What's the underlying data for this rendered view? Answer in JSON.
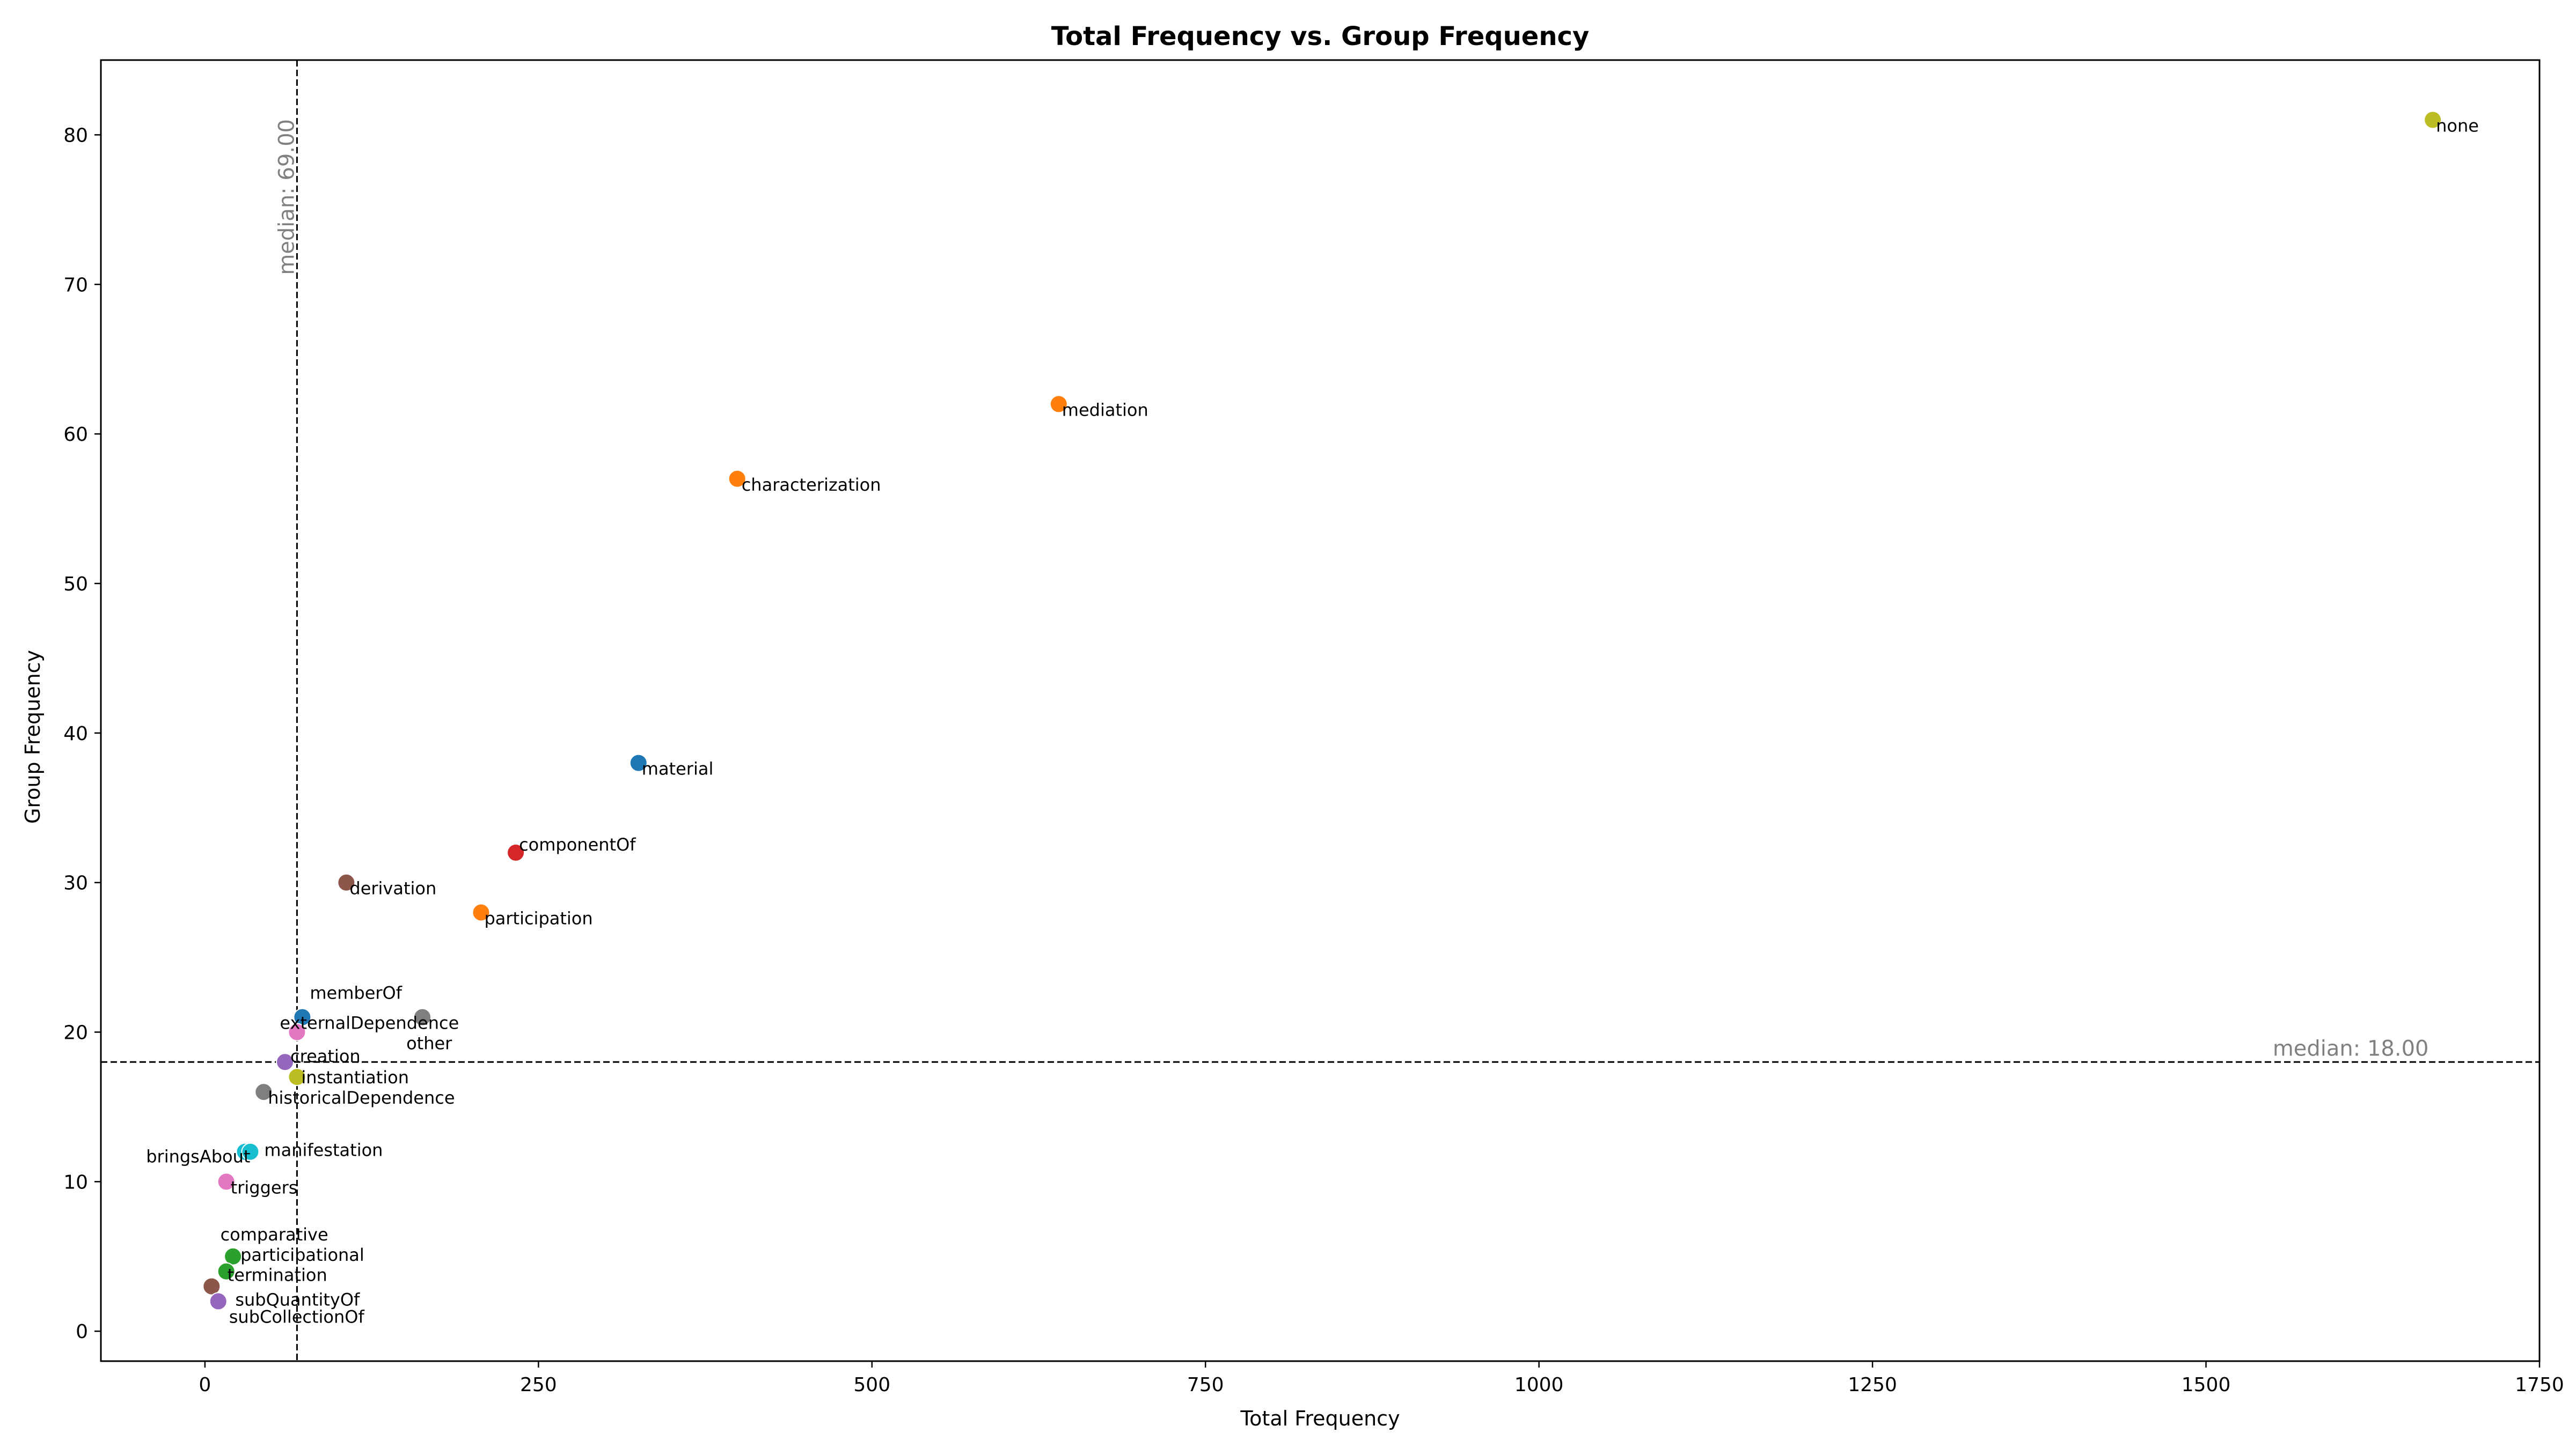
{
  "chart_data": {
    "type": "scatter",
    "title": "Total Frequency vs. Group Frequency",
    "xlabel": "Total Frequency",
    "ylabel": "Group Frequency",
    "xlim": [
      -78,
      1750
    ],
    "ylim": [
      -2,
      85
    ],
    "xticks": [
      0,
      250,
      500,
      750,
      1000,
      1250,
      1500,
      1750
    ],
    "yticks": [
      0,
      10,
      20,
      30,
      40,
      50,
      60,
      70,
      80
    ],
    "grid": false,
    "points": [
      {
        "label": "none",
        "x": 1670,
        "y": 81,
        "color": "#bcbd22"
      },
      {
        "label": "mediation",
        "x": 640,
        "y": 62,
        "color": "#ff7f0e"
      },
      {
        "label": "characterization",
        "x": 399,
        "y": 57,
        "color": "#ff7f0e"
      },
      {
        "label": "material",
        "x": 325,
        "y": 38,
        "color": "#1f77b4"
      },
      {
        "label": "componentOf",
        "x": 233,
        "y": 32,
        "color": "#d62728"
      },
      {
        "label": "derivation",
        "x": 106,
        "y": 30,
        "color": "#8c564b"
      },
      {
        "label": "participation",
        "x": 207,
        "y": 28,
        "color": "#ff7f0e"
      },
      {
        "label": "memberOf",
        "x": 73,
        "y": 21,
        "color": "#1f77b4"
      },
      {
        "label": "other",
        "x": 163,
        "y": 21,
        "color": "#7f7f7f"
      },
      {
        "label": "externalDependence",
        "x": 69,
        "y": 20,
        "color": "#e377c2"
      },
      {
        "label": "creation",
        "x": 60,
        "y": 18,
        "color": "#9467bd"
      },
      {
        "label": "instantiation",
        "x": 69,
        "y": 17,
        "color": "#bcbd22"
      },
      {
        "label": "historicalDependence",
        "x": 44,
        "y": 16,
        "color": "#7f7f7f"
      },
      {
        "label": "bringsAbout",
        "x": 30,
        "y": 12,
        "color": "#17becf"
      },
      {
        "label": "manifestation",
        "x": 34,
        "y": 12,
        "color": "#17becf"
      },
      {
        "label": "triggers",
        "x": 16,
        "y": 10,
        "color": "#e377c2"
      },
      {
        "label": "comparative",
        "x": 22,
        "y": 5,
        "color": "#2ca02c"
      },
      {
        "label": "participational",
        "x": 21,
        "y": 5,
        "color": "#2ca02c"
      },
      {
        "label": "termination",
        "x": 16,
        "y": 4,
        "color": "#2ca02c"
      },
      {
        "label": "subQuantityOf",
        "x": 5,
        "y": 3,
        "color": "#8c564b"
      },
      {
        "label": "subCollectionOf",
        "x": 10,
        "y": 2,
        "color": "#9467bd"
      }
    ],
    "medians": [
      {
        "axis": "x",
        "value": 69,
        "label": "median: 69.00"
      },
      {
        "axis": "y",
        "value": 18,
        "label": "median: 18.00"
      }
    ]
  }
}
